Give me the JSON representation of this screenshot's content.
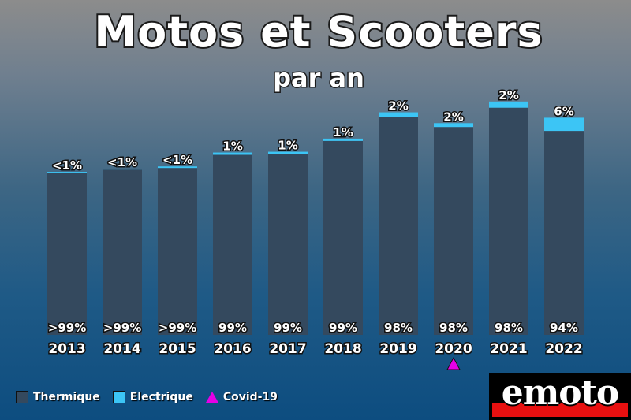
{
  "colors": {
    "thermique": "#34495e",
    "electrique": "#3cc5f5",
    "covid": "#e600e6",
    "logo_red": "#e81010"
  },
  "legend": {
    "thermique": "Thermique",
    "electrique": "Electrique",
    "covid": "Covid-19"
  },
  "logo": {
    "text": "emoto"
  },
  "chart_data": {
    "type": "bar",
    "stacked": true,
    "title": "Motos et Scooters",
    "subtitle": "par an",
    "categories": [
      "2013",
      "2014",
      "2015",
      "2016",
      "2017",
      "2018",
      "2019",
      "2020",
      "2021",
      "2022"
    ],
    "series": [
      {
        "name": "Thermique",
        "values": [
          210,
          214,
          216,
          233,
          234,
          251,
          282,
          269,
          294,
          264
        ]
      },
      {
        "name": "Electrique",
        "values": [
          1,
          1,
          2,
          3,
          3,
          3,
          6,
          5,
          8,
          17
        ]
      }
    ],
    "bottom_labels": [
      ">99%",
      ">99%",
      ">99%",
      "99%",
      "99%",
      "99%",
      "98%",
      "98%",
      "98%",
      "94%"
    ],
    "top_labels": [
      "<1%",
      "<1%",
      "<1%",
      "1%",
      "1%",
      "1%",
      "2%",
      "2%",
      "2%",
      "6%"
    ],
    "annotations": [
      {
        "category": "2020",
        "marker": "triangle",
        "label": "Covid-19"
      }
    ],
    "ylim": [
      0,
      311
    ],
    "grid": false,
    "legend_position": "bottom-left"
  }
}
